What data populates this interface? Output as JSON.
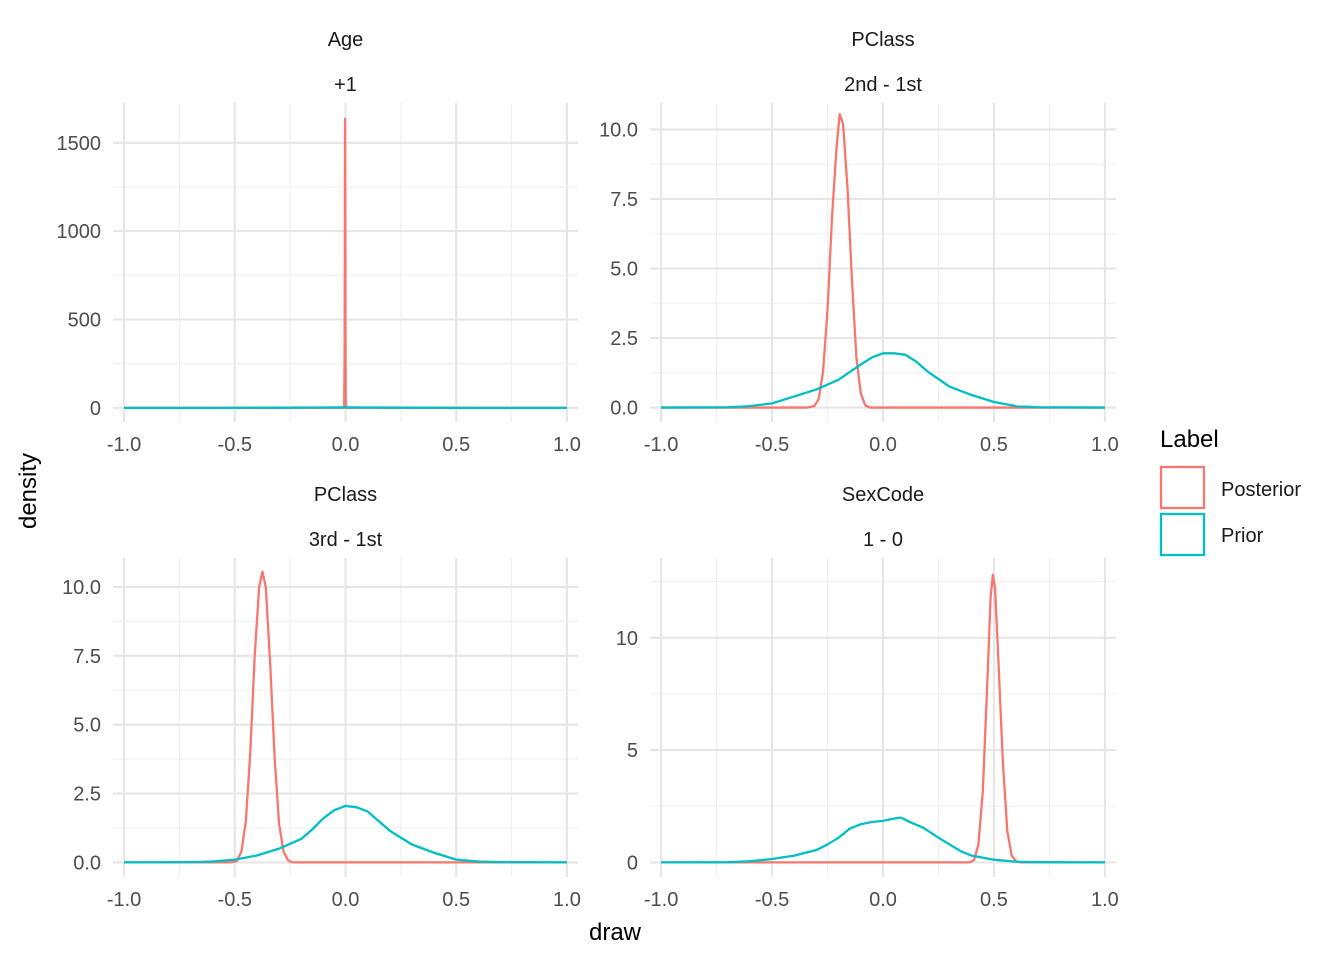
{
  "x_axis_title": "draw",
  "y_axis_title": "density",
  "legend": {
    "title": "Label",
    "entries": [
      {
        "label": "Posterior",
        "color": "#F8766D"
      },
      {
        "label": "Prior",
        "color": "#00BFC4"
      }
    ]
  },
  "chart_data": [
    {
      "type": "line",
      "title": "Age",
      "subtitle": "+1",
      "xlim": [
        -1.05,
        1.05
      ],
      "ylim": [
        -80,
        1725
      ],
      "x_ticks": [
        -1.0,
        -0.5,
        0.0,
        0.5,
        1.0
      ],
      "x_tick_labels": [
        "-1.0",
        "-0.5",
        "0.0",
        "0.5",
        "1.0"
      ],
      "y_ticks": [
        0,
        500,
        1000,
        1500
      ],
      "y_tick_labels": [
        "0",
        "500",
        "1000",
        "1500"
      ],
      "y_minor": [
        250,
        750,
        1250
      ],
      "series": [
        {
          "name": "Posterior",
          "color": "#F8766D",
          "points": [
            [
              -1.0,
              0
            ],
            [
              -0.02,
              0
            ],
            [
              -0.01,
              0
            ],
            [
              -0.006,
              2
            ],
            [
              -0.004,
              300
            ],
            [
              -0.003,
              1000
            ],
            [
              -0.002,
              1635
            ],
            [
              -0.001,
              1300
            ],
            [
              0.0,
              500
            ],
            [
              0.001,
              40
            ],
            [
              0.003,
              0
            ],
            [
              1.0,
              0
            ]
          ]
        },
        {
          "name": "Prior",
          "color": "#00BFC4",
          "points": [
            [
              -1.0,
              0
            ],
            [
              -0.6,
              0
            ],
            [
              -0.3,
              1
            ],
            [
              -0.1,
              2
            ],
            [
              0.0,
              2.5
            ],
            [
              0.1,
              2
            ],
            [
              0.3,
              1
            ],
            [
              0.6,
              0
            ],
            [
              1.0,
              0
            ]
          ]
        }
      ]
    },
    {
      "type": "line",
      "title": "PClass",
      "subtitle": "2nd - 1st",
      "xlim": [
        -1.05,
        1.05
      ],
      "ylim": [
        -0.52,
        10.95
      ],
      "x_ticks": [
        -1.0,
        -0.5,
        0.0,
        0.5,
        1.0
      ],
      "x_tick_labels": [
        "-1.0",
        "-0.5",
        "0.0",
        "0.5",
        "1.0"
      ],
      "y_ticks": [
        0,
        2.5,
        5,
        7.5,
        10
      ],
      "y_tick_labels": [
        "0.0",
        "2.5",
        "5.0",
        "7.5",
        "10.0"
      ],
      "y_minor": [
        1.25,
        3.75,
        6.25,
        8.75
      ],
      "series": [
        {
          "name": "Posterior",
          "color": "#F8766D",
          "points": [
            [
              -1.0,
              0
            ],
            [
              -0.34,
              0
            ],
            [
              -0.31,
              0.05
            ],
            [
              -0.29,
              0.3
            ],
            [
              -0.27,
              1.3
            ],
            [
              -0.25,
              3.5
            ],
            [
              -0.23,
              6.8
            ],
            [
              -0.21,
              9.3
            ],
            [
              -0.195,
              10.55
            ],
            [
              -0.18,
              10.2
            ],
            [
              -0.16,
              7.9
            ],
            [
              -0.14,
              4.6
            ],
            [
              -0.12,
              1.8
            ],
            [
              -0.1,
              0.5
            ],
            [
              -0.08,
              0.08
            ],
            [
              -0.06,
              0
            ],
            [
              1.0,
              0
            ]
          ]
        },
        {
          "name": "Prior",
          "color": "#00BFC4",
          "points": [
            [
              -1.0,
              0
            ],
            [
              -0.7,
              0.01
            ],
            [
              -0.6,
              0.05
            ],
            [
              -0.5,
              0.15
            ],
            [
              -0.4,
              0.4
            ],
            [
              -0.3,
              0.65
            ],
            [
              -0.2,
              1.0
            ],
            [
              -0.1,
              1.55
            ],
            [
              -0.05,
              1.8
            ],
            [
              0.0,
              1.95
            ],
            [
              0.05,
              1.95
            ],
            [
              0.1,
              1.9
            ],
            [
              0.15,
              1.65
            ],
            [
              0.2,
              1.3
            ],
            [
              0.3,
              0.75
            ],
            [
              0.4,
              0.45
            ],
            [
              0.5,
              0.2
            ],
            [
              0.6,
              0.05
            ],
            [
              0.7,
              0.01
            ],
            [
              1.0,
              0
            ]
          ]
        }
      ]
    },
    {
      "type": "line",
      "title": "PClass",
      "subtitle": "3rd - 1st",
      "xlim": [
        -1.05,
        1.05
      ],
      "ylim": [
        -0.53,
        11.05
      ],
      "x_ticks": [
        -1.0,
        -0.5,
        0.0,
        0.5,
        1.0
      ],
      "x_tick_labels": [
        "-1.0",
        "-0.5",
        "0.0",
        "0.5",
        "1.0"
      ],
      "y_ticks": [
        0,
        2.5,
        5,
        7.5,
        10
      ],
      "y_tick_labels": [
        "0.0",
        "2.5",
        "5.0",
        "7.5",
        "10.0"
      ],
      "y_minor": [
        1.25,
        3.75,
        6.25,
        8.75
      ],
      "series": [
        {
          "name": "Posterior",
          "color": "#F8766D",
          "points": [
            [
              -1.0,
              0
            ],
            [
              -0.52,
              0
            ],
            [
              -0.49,
              0.05
            ],
            [
              -0.47,
              0.4
            ],
            [
              -0.45,
              1.5
            ],
            [
              -0.43,
              4.0
            ],
            [
              -0.41,
              7.5
            ],
            [
              -0.39,
              10.0
            ],
            [
              -0.375,
              10.55
            ],
            [
              -0.36,
              10.0
            ],
            [
              -0.34,
              7.2
            ],
            [
              -0.32,
              3.8
            ],
            [
              -0.3,
              1.4
            ],
            [
              -0.28,
              0.4
            ],
            [
              -0.26,
              0.08
            ],
            [
              -0.24,
              0
            ],
            [
              1.0,
              0
            ]
          ]
        },
        {
          "name": "Prior",
          "color": "#00BFC4",
          "points": [
            [
              -1.0,
              0
            ],
            [
              -0.7,
              0.01
            ],
            [
              -0.6,
              0.03
            ],
            [
              -0.5,
              0.1
            ],
            [
              -0.4,
              0.25
            ],
            [
              -0.3,
              0.5
            ],
            [
              -0.2,
              0.85
            ],
            [
              -0.15,
              1.2
            ],
            [
              -0.1,
              1.6
            ],
            [
              -0.05,
              1.9
            ],
            [
              0.0,
              2.05
            ],
            [
              0.05,
              2.0
            ],
            [
              0.1,
              1.85
            ],
            [
              0.15,
              1.5
            ],
            [
              0.2,
              1.15
            ],
            [
              0.3,
              0.65
            ],
            [
              0.4,
              0.35
            ],
            [
              0.5,
              0.1
            ],
            [
              0.6,
              0.03
            ],
            [
              0.7,
              0.01
            ],
            [
              1.0,
              0
            ]
          ]
        }
      ]
    },
    {
      "type": "line",
      "title": "SexCode",
      "subtitle": "1 - 0",
      "xlim": [
        -1.05,
        1.05
      ],
      "ylim": [
        -0.65,
        13.55
      ],
      "x_ticks": [
        -1.0,
        -0.5,
        0.0,
        0.5,
        1.0
      ],
      "x_tick_labels": [
        "-1.0",
        "-0.5",
        "0.0",
        "0.5",
        "1.0"
      ],
      "y_ticks": [
        0,
        5,
        10
      ],
      "y_tick_labels": [
        "0",
        "5",
        "10"
      ],
      "y_minor": [
        2.5,
        7.5,
        12.5
      ],
      "series": [
        {
          "name": "Posterior",
          "color": "#F8766D",
          "points": [
            [
              -1.0,
              0
            ],
            [
              0.39,
              0
            ],
            [
              0.41,
              0.1
            ],
            [
              0.43,
              0.8
            ],
            [
              0.45,
              3.2
            ],
            [
              0.47,
              8.0
            ],
            [
              0.485,
              11.8
            ],
            [
              0.495,
              12.8
            ],
            [
              0.505,
              12.2
            ],
            [
              0.52,
              9.0
            ],
            [
              0.54,
              4.5
            ],
            [
              0.56,
              1.4
            ],
            [
              0.58,
              0.3
            ],
            [
              0.6,
              0.05
            ],
            [
              0.62,
              0
            ],
            [
              1.0,
              0
            ]
          ]
        },
        {
          "name": "Prior",
          "color": "#00BFC4",
          "points": [
            [
              -1.0,
              0
            ],
            [
              -0.7,
              0.01
            ],
            [
              -0.6,
              0.05
            ],
            [
              -0.5,
              0.15
            ],
            [
              -0.4,
              0.3
            ],
            [
              -0.3,
              0.55
            ],
            [
              -0.25,
              0.8
            ],
            [
              -0.2,
              1.1
            ],
            [
              -0.15,
              1.5
            ],
            [
              -0.1,
              1.7
            ],
            [
              -0.05,
              1.8
            ],
            [
              0.0,
              1.85
            ],
            [
              0.05,
              1.95
            ],
            [
              0.08,
              2.0
            ],
            [
              0.12,
              1.8
            ],
            [
              0.18,
              1.55
            ],
            [
              0.25,
              1.1
            ],
            [
              0.3,
              0.8
            ],
            [
              0.35,
              0.5
            ],
            [
              0.4,
              0.3
            ],
            [
              0.5,
              0.12
            ],
            [
              0.6,
              0.03
            ],
            [
              0.7,
              0.01
            ],
            [
              1.0,
              0
            ]
          ]
        }
      ]
    }
  ]
}
